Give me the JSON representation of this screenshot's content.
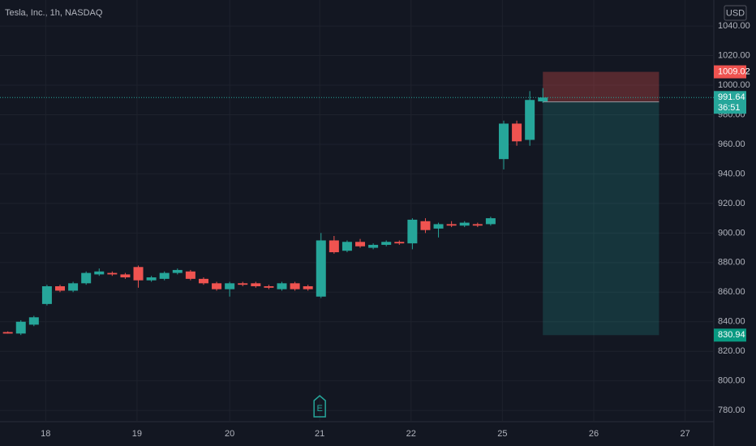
{
  "chart_data": {
    "type": "candlestick",
    "title": "Tesla, Inc., 1h, NASDAQ",
    "currency": "USD",
    "up_color": "#26a69a",
    "down_color": "#ef5350",
    "x": [
      0,
      1,
      2,
      3,
      4,
      5,
      6,
      7,
      8,
      9,
      10,
      11,
      12,
      13,
      14,
      15,
      16,
      17,
      18,
      19,
      20,
      21,
      22,
      23,
      24,
      25,
      26,
      27,
      28,
      29,
      30,
      31,
      32,
      33,
      34,
      35,
      36,
      37,
      38,
      39,
      40,
      41
    ],
    "open": [
      833,
      832,
      838,
      852,
      864,
      861,
      866,
      872,
      873,
      872,
      877,
      868,
      869,
      873,
      874,
      869,
      866,
      862,
      866,
      866,
      864,
      862,
      866,
      864,
      857,
      895,
      888,
      894,
      890,
      892,
      894,
      893,
      908,
      903,
      906,
      905,
      906,
      906,
      950,
      974,
      963,
      989
    ],
    "high": [
      833.5,
      841,
      844,
      865,
      865,
      867,
      874,
      876,
      874,
      873,
      878,
      871,
      874,
      876,
      875,
      870,
      867,
      867,
      867,
      867,
      865,
      867,
      867,
      865,
      900,
      898,
      895,
      896,
      893,
      895,
      895,
      910,
      910,
      907,
      908,
      908,
      907,
      911,
      976,
      976,
      996,
      998
    ],
    "low": [
      832,
      831,
      837,
      851,
      860,
      860,
      865,
      871,
      871,
      869,
      863,
      867,
      868,
      872,
      868,
      865,
      861,
      857,
      864,
      863,
      862,
      861,
      861,
      861,
      856,
      886,
      887,
      890,
      889,
      891,
      892,
      889,
      900,
      897,
      904,
      904,
      904,
      905,
      943,
      959,
      959,
      988
    ],
    "close": [
      832,
      840,
      843,
      864,
      861,
      866,
      873,
      874,
      872,
      870,
      868,
      870,
      873,
      875,
      869,
      866,
      862,
      866,
      865,
      864,
      863,
      866,
      862,
      862,
      895,
      887,
      894,
      891,
      892,
      894,
      893,
      909,
      902,
      906,
      905,
      907,
      905,
      910,
      974,
      962,
      990,
      991.64
    ],
    "xlim": [
      -0.6,
      54.1
    ],
    "xticks": [
      {
        "value": 2.9,
        "label": "18"
      },
      {
        "value": 9.9,
        "label": "19"
      },
      {
        "value": 17,
        "label": "20"
      },
      {
        "value": 23.9,
        "label": "21"
      },
      {
        "value": 30.9,
        "label": "22"
      },
      {
        "value": 37.9,
        "label": "25"
      },
      {
        "value": 44.9,
        "label": "26"
      },
      {
        "value": 51.9,
        "label": "27"
      }
    ],
    "ylim": [
      1057.6,
      772.4
    ],
    "yticks": [
      {
        "value": 780,
        "label": "780.00"
      },
      {
        "value": 800,
        "label": "800.00"
      },
      {
        "value": 820,
        "label": "820.00"
      },
      {
        "value": 840,
        "label": "840.00"
      },
      {
        "value": 860,
        "label": "860.00"
      },
      {
        "value": 880,
        "label": "880.00"
      },
      {
        "value": 900,
        "label": "900.00"
      },
      {
        "value": 920,
        "label": "920.00"
      },
      {
        "value": 940,
        "label": "940.00"
      },
      {
        "value": 960,
        "label": "960.00"
      },
      {
        "value": 980,
        "label": "980.00"
      },
      {
        "value": 1000,
        "label": "1000.00"
      },
      {
        "value": 1020,
        "label": "1020.00"
      },
      {
        "value": 1040,
        "label": "1040.00"
      }
    ],
    "grid": true,
    "last_price": 991.64,
    "countdown": "36:51",
    "position": {
      "x_start": 41,
      "x_end": 49.9,
      "stop": 1009.02,
      "entry": 988.72,
      "target": 830.94
    },
    "earnings_marker": {
      "x": 23.9,
      "label": "E"
    }
  }
}
